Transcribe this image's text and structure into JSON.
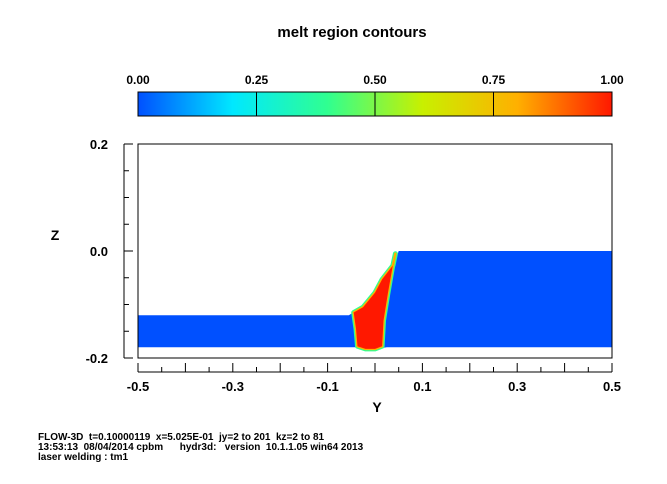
{
  "chart_data": {
    "type": "heatmap",
    "title": "melt region contours",
    "xlabel": "Y",
    "ylabel": "Z",
    "xlim": [
      -0.5,
      0.5
    ],
    "ylim": [
      -0.2,
      0.2
    ],
    "x_ticks": [
      -0.5,
      -0.3,
      -0.1,
      0.1,
      0.3,
      0.5
    ],
    "x_tick_labels": [
      "-0.5",
      "-0.3",
      "-0.1",
      "0.1",
      "0.3",
      "0.5"
    ],
    "y_ticks": [
      0.2,
      0.0,
      -0.2
    ],
    "y_tick_labels": [
      "0.2",
      "0.0",
      "-0.2"
    ],
    "colorbar": {
      "min": 0.0,
      "max": 1.0,
      "tick_values": [
        0.0,
        0.25,
        0.5,
        0.75,
        1.0
      ],
      "tick_labels": [
        "0.00",
        "0.25",
        "0.50",
        "0.75",
        "1.00"
      ],
      "colors": [
        "#0050ff",
        "#00e8ff",
        "#30ff90",
        "#c8f000",
        "#ffb000",
        "#ff1800"
      ]
    },
    "regions": [
      {
        "name": "solid",
        "value": 0.0,
        "color": "#0050ff",
        "polygon": [
          [
            -0.5,
            -0.12
          ],
          [
            -0.055,
            -0.12
          ],
          [
            -0.03,
            -0.105
          ],
          [
            0.0,
            -0.075
          ],
          [
            0.015,
            -0.05
          ],
          [
            0.04,
            -0.025
          ],
          [
            0.05,
            0.0
          ],
          [
            0.5,
            0.0
          ],
          [
            0.5,
            -0.18
          ],
          [
            0.025,
            -0.18
          ],
          [
            0.0,
            -0.183
          ],
          [
            -0.02,
            -0.183
          ],
          [
            -0.04,
            -0.18
          ],
          [
            -0.5,
            -0.18
          ]
        ]
      },
      {
        "name": "melt",
        "value": 1.0,
        "color": "#ff1800",
        "polygon": [
          [
            -0.045,
            -0.115
          ],
          [
            -0.025,
            -0.105
          ],
          [
            0.0,
            -0.078
          ],
          [
            0.015,
            -0.053
          ],
          [
            0.038,
            -0.027
          ],
          [
            0.043,
            -0.005
          ],
          [
            0.037,
            -0.03
          ],
          [
            0.027,
            -0.08
          ],
          [
            0.018,
            -0.13
          ],
          [
            0.015,
            -0.178
          ],
          [
            0.0,
            -0.183
          ],
          [
            -0.02,
            -0.183
          ],
          [
            -0.037,
            -0.178
          ],
          [
            -0.04,
            -0.145
          ]
        ]
      }
    ]
  },
  "footer": {
    "line1": "FLOW-3D  t=0.10000119  x=5.025E-01  jy=2 to 201  kz=2 to 81",
    "line2": "13:53:13  08/04/2014 cpbm      hydr3d:   version  10.1.1.05 win64 2013",
    "line3": "laser welding : tm1"
  }
}
